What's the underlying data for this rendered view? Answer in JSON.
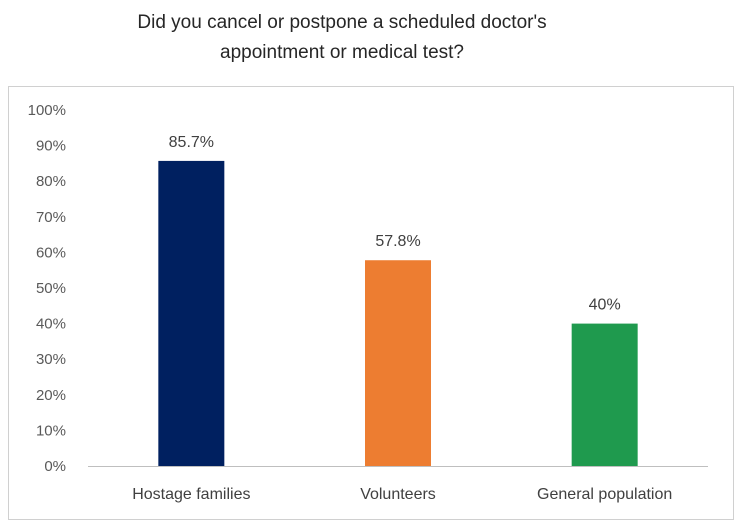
{
  "chart_data": {
    "type": "bar",
    "title": "Did you cancel or postpone a scheduled doctor's\nappointment or medical test?",
    "categories": [
      "Hostage families",
      "Volunteers",
      "General population"
    ],
    "values": [
      85.7,
      57.8,
      40
    ],
    "data_labels": [
      "85.7%",
      "57.8%",
      "40%"
    ],
    "colors": [
      "#002060",
      "#ED7D31",
      "#1F9A4E"
    ],
    "ylim": [
      0,
      100
    ],
    "y_ticks": [
      "0%",
      "10%",
      "20%",
      "30%",
      "40%",
      "50%",
      "60%",
      "70%",
      "80%",
      "90%",
      "100%"
    ],
    "grid": false,
    "legend": "none",
    "xlabel": "",
    "ylabel": ""
  }
}
